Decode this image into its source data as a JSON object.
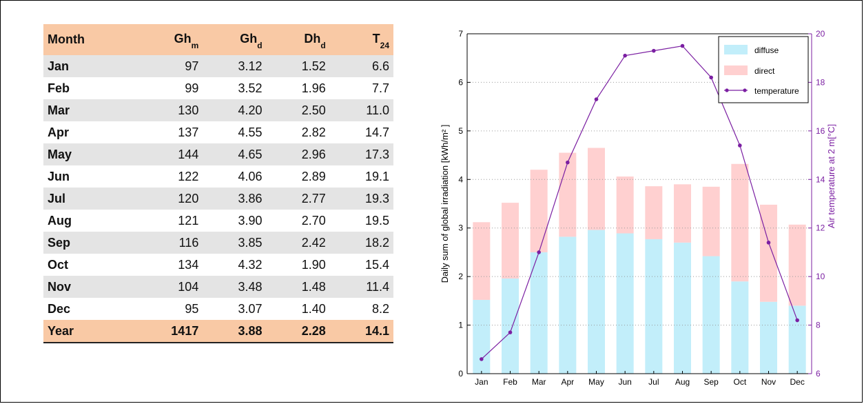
{
  "table": {
    "headers": [
      {
        "main": "Month",
        "sub": ""
      },
      {
        "main": "Gh",
        "sub": "m"
      },
      {
        "main": "Gh",
        "sub": "d"
      },
      {
        "main": "Dh",
        "sub": "d"
      },
      {
        "main": "T",
        "sub": "24"
      }
    ],
    "rows": [
      [
        "Jan",
        "97",
        "3.12",
        "1.52",
        "6.6"
      ],
      [
        "Feb",
        "99",
        "3.52",
        "1.96",
        "7.7"
      ],
      [
        "Mar",
        "130",
        "4.20",
        "2.50",
        "11.0"
      ],
      [
        "Apr",
        "137",
        "4.55",
        "2.82",
        "14.7"
      ],
      [
        "May",
        "144",
        "4.65",
        "2.96",
        "17.3"
      ],
      [
        "Jun",
        "122",
        "4.06",
        "2.89",
        "19.1"
      ],
      [
        "Jul",
        "120",
        "3.86",
        "2.77",
        "19.3"
      ],
      [
        "Aug",
        "121",
        "3.90",
        "2.70",
        "19.5"
      ],
      [
        "Sep",
        "116",
        "3.85",
        "2.42",
        "18.2"
      ],
      [
        "Oct",
        "134",
        "4.32",
        "1.90",
        "15.4"
      ],
      [
        "Nov",
        "104",
        "3.48",
        "1.48",
        "11.4"
      ],
      [
        "Dec",
        "95",
        "3.07",
        "1.40",
        "8.2"
      ]
    ],
    "total": [
      "Year",
      "1417",
      "3.88",
      "2.28",
      "14.1"
    ]
  },
  "chart_data": {
    "type": "bar",
    "stacked": true,
    "categories": [
      "Jan",
      "Feb",
      "Mar",
      "Apr",
      "May",
      "Jun",
      "Jul",
      "Aug",
      "Sep",
      "Oct",
      "Nov",
      "Dec"
    ],
    "series": [
      {
        "name": "diffuse",
        "axis": "left",
        "color": "#c2eefa",
        "values": [
          1.52,
          1.96,
          2.5,
          2.82,
          2.96,
          2.89,
          2.77,
          2.7,
          2.42,
          1.9,
          1.48,
          1.4
        ]
      },
      {
        "name": "direct",
        "axis": "left",
        "color": "#ffd0d0",
        "values": [
          1.6,
          1.56,
          1.7,
          1.73,
          1.69,
          1.17,
          1.09,
          1.2,
          1.43,
          2.42,
          2.0,
          1.67
        ]
      },
      {
        "name": "temperature",
        "axis": "right",
        "type": "line",
        "color": "#7b1fa2",
        "values": [
          6.6,
          7.7,
          11.0,
          14.7,
          17.3,
          19.1,
          19.3,
          19.5,
          18.2,
          15.4,
          11.4,
          8.2
        ]
      }
    ],
    "ylabel": "Daily sum of global irradiation [kWh/m² ]",
    "y2label": "Air temperature at 2 m[°C]",
    "ylim": [
      0,
      7
    ],
    "y2lim": [
      6,
      20
    ],
    "yticks": [
      0,
      1,
      2,
      3,
      4,
      5,
      6,
      7
    ],
    "y2ticks": [
      6,
      8,
      10,
      12,
      14,
      16,
      18,
      20
    ],
    "grid": "right-axis dotted",
    "legend_position": "top-right"
  }
}
